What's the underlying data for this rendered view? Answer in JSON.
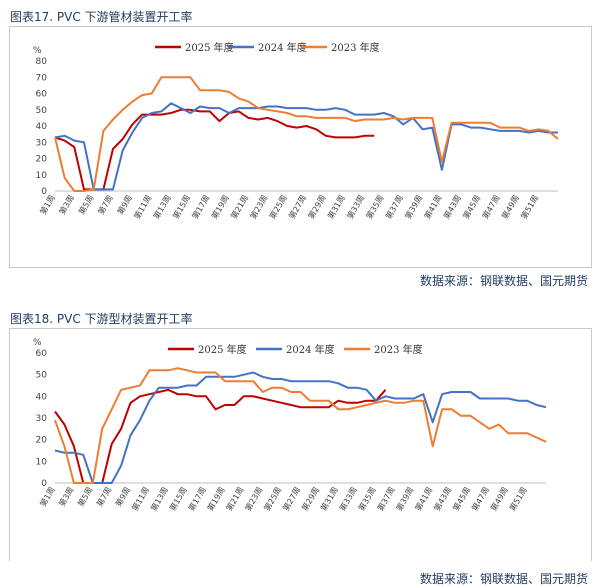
{
  "charts": [
    {
      "title": "图表17.  PVC 下游管材装置开工率",
      "source": "数据来源：钢联数据、国元期货"
    },
    {
      "title": "图表18.  PVC 下游型材装置开工率",
      "source": "数据来源：钢联数据、国元期货"
    }
  ],
  "chart_data": [
    {
      "type": "line",
      "title": "PVC 下游管材装置开工率",
      "ylabel": "%",
      "ylim": [
        0,
        80
      ],
      "yticks": [
        0,
        10,
        20,
        30,
        40,
        50,
        60,
        70,
        80
      ],
      "legend_position": "top",
      "grid": false,
      "x_tick_labels": [
        "第1周",
        "第3周",
        "第5周",
        "第7周",
        "第9周",
        "第11周",
        "第13周",
        "第15周",
        "第17周",
        "第19周",
        "第21周",
        "第23周",
        "第25周",
        "第27周",
        "第29周",
        "第31周",
        "第33周",
        "第35周",
        "第37周",
        "第39周",
        "第41周",
        "第43周",
        "第45周",
        "第47周",
        "第49周",
        "第51周"
      ],
      "series": [
        {
          "name": "2025 年度",
          "color": "#c00000",
          "values": [
            33,
            31,
            27,
            1,
            1,
            1,
            26,
            32,
            41,
            47,
            47,
            47,
            48,
            50,
            50,
            49,
            49,
            43,
            48,
            49,
            45,
            44,
            45,
            43,
            40,
            39,
            40,
            38,
            34,
            33,
            33,
            33,
            34,
            34
          ]
        },
        {
          "name": "2024 年度",
          "color": "#4472c4",
          "values": [
            33,
            34,
            31,
            30,
            1,
            1,
            1,
            25,
            36,
            45,
            48,
            49,
            54,
            51,
            48,
            52,
            51,
            51,
            48,
            51,
            51,
            51,
            52,
            52,
            51,
            51,
            51,
            50,
            50,
            51,
            50,
            47,
            47,
            47,
            48,
            46,
            41,
            45,
            38,
            39,
            13,
            41,
            41,
            39,
            39,
            38,
            37,
            37,
            37,
            36,
            37,
            36,
            36
          ]
        },
        {
          "name": "2023 年度",
          "color": "#ed7d31",
          "values": [
            33,
            8,
            0,
            0,
            1,
            37,
            44,
            50,
            55,
            59,
            60,
            70,
            70,
            70,
            70,
            62,
            62,
            62,
            61,
            57,
            55,
            51,
            50,
            49,
            48,
            46,
            46,
            45,
            45,
            45,
            45,
            43,
            44,
            44,
            44,
            45,
            44,
            45,
            45,
            45,
            18,
            42,
            42,
            42,
            42,
            42,
            39,
            39,
            39,
            37,
            38,
            37,
            32
          ]
        }
      ]
    },
    {
      "type": "line",
      "title": "PVC 下游型材装置开工率",
      "ylabel": "%",
      "ylim": [
        0,
        60
      ],
      "yticks": [
        0,
        10,
        20,
        30,
        40,
        50,
        60
      ],
      "legend_position": "top",
      "grid": false,
      "x_tick_labels": [
        "第1周",
        "第3周",
        "第5周",
        "第7周",
        "第9周",
        "第11周",
        "第13周",
        "第15周",
        "第17周",
        "第19周",
        "第21周",
        "第23周",
        "第25周",
        "第27周",
        "第29周",
        "第31周",
        "第33周",
        "第35周",
        "第37周",
        "第39周",
        "第41周",
        "第43周",
        "第45周",
        "第47周",
        "第49周",
        "第51周"
      ],
      "series": [
        {
          "name": "2025 年度",
          "color": "#c00000",
          "values": [
            33,
            27,
            17,
            0,
            0,
            0,
            18,
            25,
            37,
            40,
            41,
            42,
            43,
            41,
            41,
            40,
            40,
            34,
            36,
            36,
            40,
            40,
            39,
            38,
            37,
            36,
            35,
            35,
            35,
            35,
            38,
            37,
            37,
            38,
            38,
            43
          ]
        },
        {
          "name": "2024 年度",
          "color": "#4472c4",
          "values": [
            15,
            14,
            14,
            13,
            0,
            0,
            0,
            8,
            22,
            29,
            38,
            44,
            44,
            44,
            45,
            45,
            49,
            49,
            49,
            49,
            50,
            51,
            49,
            48,
            48,
            47,
            47,
            47,
            47,
            47,
            46,
            44,
            44,
            43,
            38,
            40,
            39,
            39,
            39,
            41,
            28,
            41,
            42,
            42,
            42,
            39,
            39,
            39,
            39,
            38,
            38,
            36,
            35
          ]
        },
        {
          "name": "2023 年度",
          "color": "#ed7d31",
          "values": [
            29,
            17,
            0,
            0,
            0,
            25,
            34,
            43,
            44,
            45,
            52,
            52,
            52,
            53,
            52,
            51,
            51,
            51,
            47,
            47,
            47,
            47,
            42,
            44,
            44,
            42,
            42,
            38,
            38,
            38,
            34,
            34,
            35,
            36,
            37,
            38,
            37,
            37,
            38,
            38,
            17,
            34,
            34,
            31,
            31,
            28,
            25,
            27,
            23,
            23,
            23,
            21,
            19
          ]
        }
      ]
    }
  ]
}
